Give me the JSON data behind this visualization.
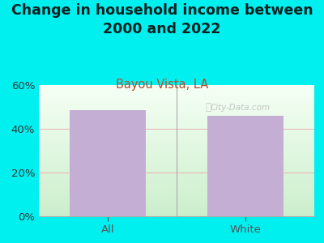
{
  "title": "Change in household income between\n2000 and 2022",
  "subtitle": "Bayou Vista, LA",
  "categories": [
    "All",
    "White"
  ],
  "values": [
    48.5,
    46.0
  ],
  "bar_color": "#c4aed4",
  "title_fontsize": 12.5,
  "subtitle_fontsize": 10.5,
  "subtitle_color": "#b05030",
  "tick_label_fontsize": 9.5,
  "background_outer": "#00f0f0",
  "ylim": [
    0,
    60
  ],
  "yticks": [
    0,
    20,
    40,
    60
  ],
  "ytick_labels": [
    "0%",
    "20%",
    "40%",
    "60%"
  ],
  "watermark": "City-Data.com",
  "grid_color": "#e8b0b0",
  "bar_width": 0.55,
  "title_color": "#0a2020"
}
